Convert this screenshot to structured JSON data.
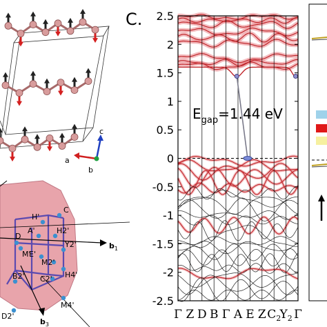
{
  "panel_c": {
    "label": "C.",
    "gap_text": "E",
    "gap_sub": "gap",
    "gap_value": "=1.44 eV",
    "k_labels": [
      "Γ",
      "Z",
      "D",
      "B",
      "Γ",
      "A",
      "E",
      "Z",
      "C",
      "Y",
      "Γ"
    ],
    "k_sub": {
      "8": "2",
      "9": "2"
    }
  },
  "crystal": {
    "axis_a": "a",
    "axis_b": "b",
    "axis_c": "c"
  },
  "brillouin": {
    "points": [
      {
        "text": "C"
      },
      {
        "text": "H'"
      },
      {
        "text": "A'"
      },
      {
        "text": "D"
      },
      {
        "text": "M'"
      },
      {
        "text": "H2'"
      },
      {
        "text": "Y2'"
      },
      {
        "text": "E'"
      },
      {
        "text": "M2'"
      },
      {
        "text": "B2'"
      },
      {
        "text": "C2'"
      },
      {
        "text": "H4'"
      },
      {
        "text": "M4'"
      },
      {
        "text": "D2'"
      }
    ],
    "b1": "b",
    "b1_sub": "1",
    "b3": "b",
    "b3_sub": "3"
  },
  "colors": {
    "band_red": "#c0262b",
    "band_fill": "#e9858a",
    "atom": "#d89c9c",
    "spin_up": "#222222",
    "spin_down": "#d42020",
    "zone_fill": "#e8a4ab",
    "zone_edge": "#5b4ab0",
    "zone_point": "#3c90d0",
    "axis_c": "#2040c0",
    "axis_b": "#20a040",
    "axis_a": "#d02020"
  },
  "chart_data": {
    "type": "line",
    "title": "",
    "xlabel": "",
    "ylabel": "",
    "ylim": [
      -2.5,
      2.5
    ],
    "yticks": [
      -2.5,
      -2,
      -1.5,
      -1,
      -0.5,
      0,
      0.5,
      1,
      1.5,
      2,
      2.5
    ],
    "ytick_labels": [
      "-2.5",
      "-2",
      "-1.5",
      "-1",
      "-0.5",
      "0",
      "0.5",
      "1",
      "1.5",
      "2",
      "2.5"
    ],
    "x": [
      0,
      1,
      2,
      3,
      4,
      5,
      6,
      7,
      8,
      9,
      10
    ],
    "fermi_level": 0,
    "band_gap_eV": 1.44,
    "cbm": {
      "x": 4.9,
      "y": 1.44
    },
    "vbm": {
      "x": 5.8,
      "y": 0
    },
    "cbm2": {
      "x": 9.8,
      "y": 1.44
    }
  }
}
